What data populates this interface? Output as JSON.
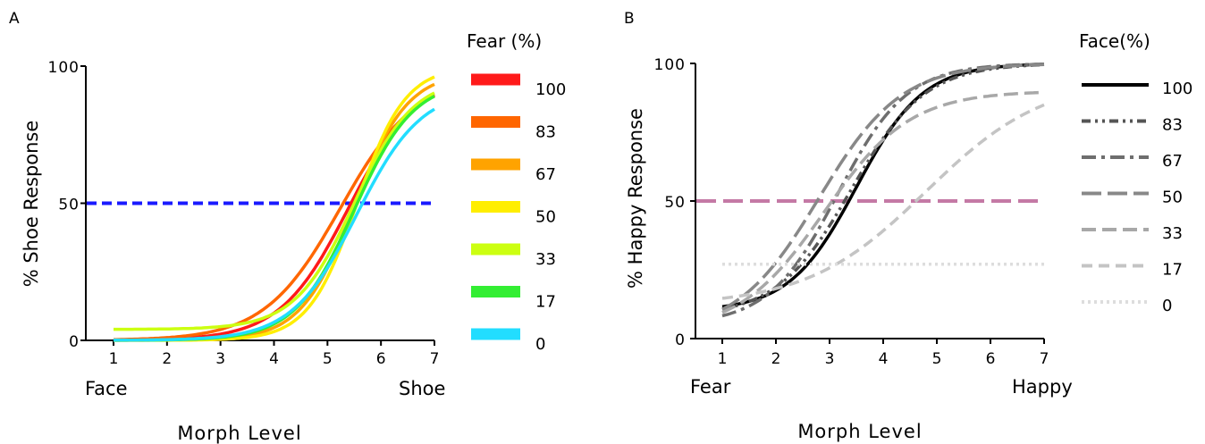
{
  "chart_data": [
    {
      "panel": "A",
      "type": "line",
      "xlabel": "Morph Level",
      "ylabel": "% Shoe Response",
      "x_ticks": [
        "1",
        "2",
        "3",
        "4",
        "5",
        "6",
        "7"
      ],
      "y_ticks": [
        "0",
        "50",
        "100"
      ],
      "x_end_labels": {
        "left": "Face",
        "right": "Shoe"
      },
      "xlim": [
        0.5,
        7
      ],
      "ylim": [
        0,
        100
      ],
      "reference_line": {
        "y": 50,
        "color": "#1a1aff",
        "style": "dashed"
      },
      "legend_title": "Fear (%)",
      "series": [
        {
          "name": "100",
          "color": "#ff1a1a",
          "x0": 5.4,
          "slope": 1.55,
          "ymax": 97,
          "base": 0
        },
        {
          "name": "83",
          "color": "#ff6600",
          "x0": 5.25,
          "slope": 1.4,
          "ymax": 97,
          "base": 0
        },
        {
          "name": "67",
          "color": "#ffa300",
          "x0": 5.5,
          "slope": 2.0,
          "ymax": 98,
          "base": 0
        },
        {
          "name": "50",
          "color": "#ffee00",
          "x0": 5.55,
          "slope": 2.2,
          "ymax": 100,
          "base": 0
        },
        {
          "name": "33",
          "color": "#ccff11",
          "x0": 5.5,
          "slope": 1.8,
          "ymax": 96,
          "base": 4
        },
        {
          "name": "17",
          "color": "#33ee33",
          "x0": 5.5,
          "slope": 1.8,
          "ymax": 95,
          "base": 0
        },
        {
          "name": "0",
          "color": "#22ddff",
          "x0": 5.55,
          "slope": 1.65,
          "ymax": 92,
          "base": 0
        }
      ],
      "label": "A"
    },
    {
      "panel": "B",
      "type": "line",
      "xlabel": "Morph Level",
      "ylabel": "% Happy Response",
      "x_ticks": [
        "1",
        "2",
        "3",
        "4",
        "5",
        "6",
        "7"
      ],
      "y_ticks": [
        "0",
        "50",
        "100"
      ],
      "x_end_labels": {
        "left": "Fear",
        "right": "Happy"
      },
      "xlim": [
        0.5,
        7
      ],
      "ylim": [
        0,
        100
      ],
      "reference_line": {
        "y": 50,
        "color": "#c479a5",
        "style": "dashed"
      },
      "legend_title": "Face(%)",
      "series": [
        {
          "name": "100",
          "color": "#000000",
          "dash": "",
          "width": 3.5,
          "x0": 3.5,
          "slope": 1.6,
          "ymax": 100,
          "base": 10,
          "fixed": null
        },
        {
          "name": "83",
          "color": "#555555",
          "dash": "10 5 3 5 3 5",
          "width": 3.5,
          "x0": 3.4,
          "slope": 1.45,
          "ymax": 100,
          "base": 8,
          "fixed": null
        },
        {
          "name": "67",
          "color": "#6e6e6e",
          "dash": "16 6 4 6",
          "width": 3.5,
          "x0": 3.15,
          "slope": 1.55,
          "ymax": 100,
          "base": 5,
          "fixed": null
        },
        {
          "name": "50",
          "color": "#888888",
          "dash": "22 7",
          "width": 3.5,
          "x0": 2.8,
          "slope": 1.3,
          "ymax": 100,
          "base": 2,
          "fixed": null
        },
        {
          "name": "33",
          "color": "#a8a8a8",
          "dash": "16 7",
          "width": 3.5,
          "x0": 2.9,
          "slope": 1.25,
          "ymax": 90,
          "base": 2,
          "fixed": null
        },
        {
          "name": "17",
          "color": "#c4c4c4",
          "dash": "12 7",
          "width": 3.5,
          "x0": 4.8,
          "slope": 0.9,
          "ymax": 95,
          "base": 12,
          "fixed": null
        },
        {
          "name": "0",
          "color": "#dddddd",
          "dash": "3 4",
          "width": 3.5,
          "x0": 0,
          "slope": 0,
          "ymax": 0,
          "base": 0,
          "fixed": 27
        }
      ],
      "label": "B"
    }
  ]
}
